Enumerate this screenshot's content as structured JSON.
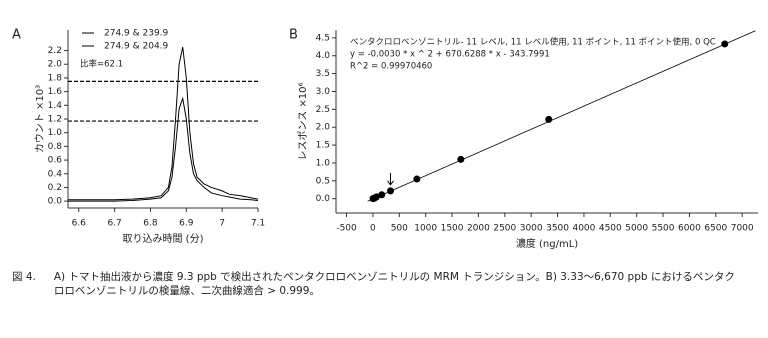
{
  "chart_data": [
    {
      "type": "line",
      "panel_label": "A",
      "xlabel": "取り込み時間 (分)",
      "ylabel": "カウント ×10³",
      "x": [
        6.57,
        6.6,
        6.65,
        6.7,
        6.75,
        6.8,
        6.83,
        6.85,
        6.86,
        6.87,
        6.88,
        6.89,
        6.9,
        6.91,
        6.92,
        6.93,
        6.95,
        6.97,
        7.0,
        7.02,
        7.05,
        7.08,
        7.1
      ],
      "series": [
        {
          "name": "274.9 & 239.9",
          "color": "#000000",
          "values": [
            0.02,
            0.02,
            0.02,
            0.02,
            0.03,
            0.05,
            0.08,
            0.2,
            0.5,
            1.2,
            2.0,
            2.25,
            1.8,
            1.0,
            0.55,
            0.35,
            0.25,
            0.2,
            0.15,
            0.1,
            0.08,
            0.05,
            0.03
          ]
        },
        {
          "name": "274.9 & 204.9",
          "color": "#000000",
          "values": [
            0.0,
            0.0,
            0.0,
            0.0,
            0.01,
            0.03,
            0.05,
            0.15,
            0.35,
            0.8,
            1.35,
            1.5,
            1.2,
            0.7,
            0.4,
            0.3,
            0.2,
            0.12,
            0.08,
            0.06,
            0.03,
            0.02,
            0.01
          ]
        }
      ],
      "hlines": [
        1.75,
        1.17
      ],
      "annotations": [
        "比率=62.1"
      ],
      "xlim": [
        6.57,
        7.1
      ],
      "xticks": [
        6.6,
        6.7,
        6.8,
        6.9,
        7,
        7.1
      ],
      "ylim": [
        -0.1,
        2.5
      ],
      "yticks": [
        {
          "value": 0,
          "label": "0.0"
        },
        0.2,
        0.4,
        0.6,
        0.8,
        {
          "value": 1,
          "label": "1.0"
        },
        1.2,
        1.4,
        1.6,
        1.8,
        {
          "value": 2,
          "label": "2.0"
        },
        2.2
      ]
    },
    {
      "type": "scatter",
      "panel_label": "B",
      "xlabel": "濃度 (ng/mL)",
      "ylabel": "レスポンス ×10⁶",
      "x": [
        3.33,
        6.67,
        16.7,
        33.3,
        66.7,
        167,
        333,
        833,
        1667,
        3333,
        6670
      ],
      "values": [
        0.002,
        0.004,
        0.01,
        0.02,
        0.05,
        0.11,
        0.22,
        0.55,
        1.1,
        2.22,
        4.33
      ],
      "color": "#000000",
      "fit": {
        "x": [
          -100,
          7250
        ],
        "values": [
          -0.07,
          4.7
        ]
      },
      "annotations": [
        "ベンタクロロベンゾニトリル- 11 レベル, 11 レベル使用, 11 ポイント, 11 ポイント使用, 0 QC",
        "y = -0.0030 * x ^ 2 + 670.6288 * x - 343.7991",
        "R^2 = 0.99970460"
      ],
      "xlim": [
        -700,
        7300
      ],
      "xticks": [
        -500,
        0,
        500,
        1000,
        1500,
        2000,
        2500,
        3000,
        3500,
        4000,
        4500,
        5000,
        5500,
        6000,
        6500,
        7000
      ],
      "ylim": [
        -0.4,
        4.72
      ],
      "yticks": [
        {
          "value": 0,
          "label": "0.0"
        },
        0.5,
        {
          "value": 1,
          "label": "1.0"
        },
        1.5,
        {
          "value": 2,
          "label": "2.0"
        },
        2.5,
        {
          "value": 3,
          "label": "3.0"
        },
        3.5,
        {
          "value": 4,
          "label": "4.0"
        },
        4.5
      ]
    }
  ],
  "caption": {
    "label": "図 4.",
    "text": "A) トマト抽出液から濃度 9.3 ppb で検出されたペンタクロロベンゾニトリルの MRM トランジション。B) 3.33～6,670 ppb におけるペンタクロロベンゾニトリルの検量線、二次曲線適合 > 0.999。"
  }
}
